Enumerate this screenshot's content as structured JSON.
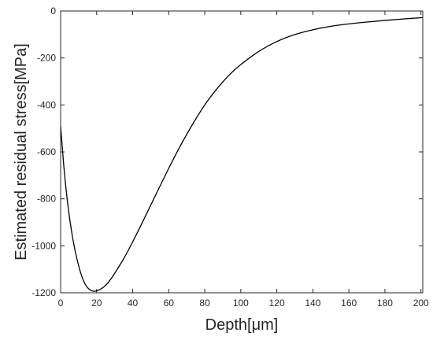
{
  "chart_data": {
    "type": "line",
    "title": "",
    "xlabel": "Depth[μm]",
    "ylabel": "Estimated residual stress[MPa]",
    "xlim": [
      0,
      201
    ],
    "ylim": [
      -1200,
      0
    ],
    "xticks": [
      0,
      20,
      40,
      60,
      80,
      100,
      120,
      140,
      160,
      180,
      200
    ],
    "yticks": [
      0,
      -200,
      -400,
      -600,
      -800,
      -1000,
      -1200
    ],
    "grid": false,
    "legend": "none",
    "line_color": "#000000",
    "series": [
      {
        "x": [
          0,
          2,
          4,
          6,
          8,
          10,
          12,
          14,
          16,
          18,
          20,
          22,
          24,
          26,
          28,
          30,
          35,
          40,
          45,
          50,
          55,
          60,
          65,
          70,
          75,
          80,
          85,
          90,
          95,
          100,
          110,
          120,
          130,
          140,
          150,
          160,
          170,
          180,
          190,
          201
        ],
        "y": [
          -490,
          -680,
          -825,
          -935,
          -1020,
          -1085,
          -1135,
          -1168,
          -1186,
          -1193,
          -1192,
          -1185,
          -1175,
          -1160,
          -1140,
          -1117,
          -1055,
          -983,
          -906,
          -827,
          -748,
          -670,
          -595,
          -525,
          -460,
          -400,
          -348,
          -302,
          -262,
          -228,
          -172,
          -130,
          -100,
          -80,
          -65,
          -55,
          -47,
          -40,
          -34,
          -28
        ]
      }
    ]
  }
}
